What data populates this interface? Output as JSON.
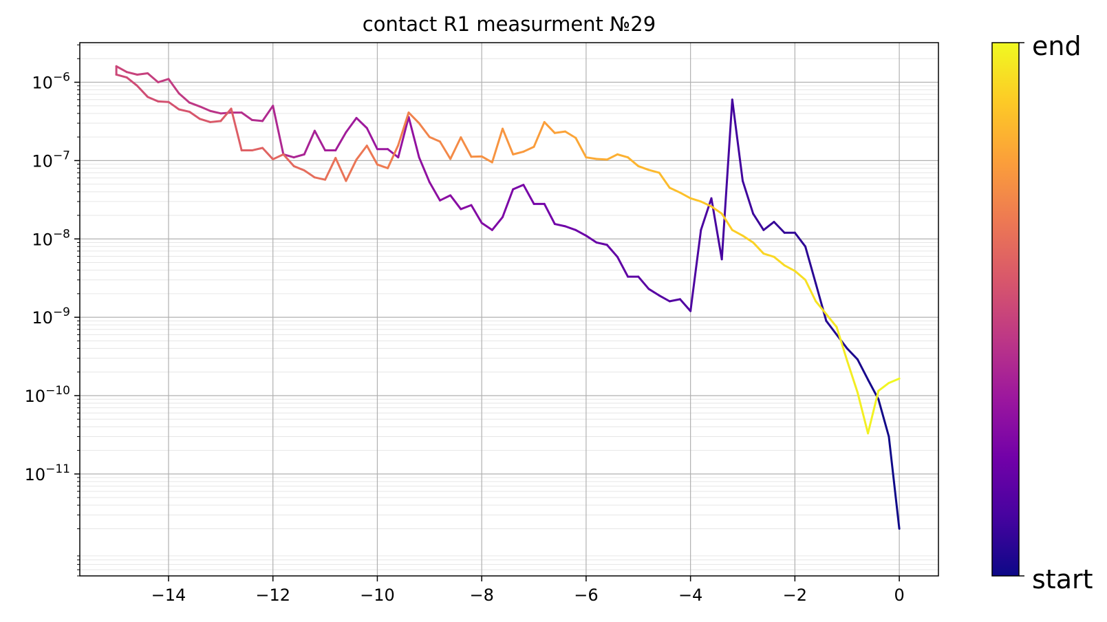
{
  "chart_data": {
    "type": "line",
    "title": "contact R1 measurment №29",
    "xlabel": "",
    "ylabel": "",
    "y_scale": "log",
    "xlim": [
      -15.7,
      0.75
    ],
    "ylim": [
      5e-13,
      3.2e-06
    ],
    "xticks": [
      -14,
      -12,
      -10,
      -8,
      -6,
      -4,
      -2,
      0
    ],
    "xtick_labels": [
      "−14",
      "−12",
      "−10",
      "−8",
      "−6",
      "−4",
      "−2",
      "0"
    ],
    "yticks": [
      {
        "value": 1e-06,
        "base": "10",
        "exp": "−6"
      },
      {
        "value": 1e-07,
        "base": "10",
        "exp": "−7"
      },
      {
        "value": 1e-08,
        "base": "10",
        "exp": "−8"
      },
      {
        "value": 1e-09,
        "base": "10",
        "exp": "−9"
      },
      {
        "value": 1e-10,
        "base": "10",
        "exp": "−10"
      },
      {
        "value": 1e-11,
        "base": "10",
        "exp": "−11"
      }
    ],
    "grid": true,
    "minor_grid": true,
    "colorscale": "plasma",
    "colorbar": {
      "start_label": "start",
      "end_label": "end",
      "colors": [
        "#0d0887",
        "#46039f",
        "#7201a8",
        "#9c179e",
        "#bd3786",
        "#d8576b",
        "#ed7953",
        "#fb9f3a",
        "#fdca26",
        "#f0f921"
      ]
    },
    "points": [
      [
        0.0,
        2e-12
      ],
      [
        -0.2,
        3e-11
      ],
      [
        -0.4,
        9e-11
      ],
      [
        -0.6,
        1.6e-10
      ],
      [
        -0.8,
        2.9e-10
      ],
      [
        -1.0,
        4e-10
      ],
      [
        -1.2,
        6e-10
      ],
      [
        -1.4,
        9e-10
      ],
      [
        -1.6,
        2.7e-09
      ],
      [
        -1.8,
        8e-09
      ],
      [
        -2.0,
        1.2e-08
      ],
      [
        -2.2,
        1.2e-08
      ],
      [
        -2.4,
        1.65e-08
      ],
      [
        -2.6,
        1.3e-08
      ],
      [
        -2.8,
        2.1e-08
      ],
      [
        -3.0,
        5.5e-08
      ],
      [
        -3.2,
        6e-07
      ],
      [
        -3.4,
        5.5e-09
      ],
      [
        -3.6,
        3.3e-08
      ],
      [
        -3.8,
        1.3e-08
      ],
      [
        -4.0,
        1.2e-09
      ],
      [
        -4.2,
        1.7e-09
      ],
      [
        -4.4,
        1.6e-09
      ],
      [
        -4.6,
        1.9e-09
      ],
      [
        -4.8,
        2.3e-09
      ],
      [
        -5.0,
        3.3e-09
      ],
      [
        -5.2,
        3.3e-09
      ],
      [
        -5.4,
        5.9e-09
      ],
      [
        -5.6,
        8.4e-09
      ],
      [
        -5.8,
        9e-09
      ],
      [
        -6.0,
        1.1e-08
      ],
      [
        -6.2,
        1.3e-08
      ],
      [
        -6.4,
        1.45e-08
      ],
      [
        -6.6,
        1.55e-08
      ],
      [
        -6.8,
        2.8e-08
      ],
      [
        -7.0,
        2.8e-08
      ],
      [
        -7.2,
        4.9e-08
      ],
      [
        -7.4,
        4.3e-08
      ],
      [
        -7.6,
        1.9e-08
      ],
      [
        -7.8,
        1.3e-08
      ],
      [
        -8.0,
        1.6e-08
      ],
      [
        -8.2,
        2.7e-08
      ],
      [
        -8.4,
        2.4e-08
      ],
      [
        -8.6,
        3.6e-08
      ],
      [
        -8.8,
        3.1e-08
      ],
      [
        -9.0,
        5.3e-08
      ],
      [
        -9.2,
        1.1e-07
      ],
      [
        -9.4,
        3.6e-07
      ],
      [
        -9.6,
        1.1e-07
      ],
      [
        -9.8,
        1.4e-07
      ],
      [
        -10.0,
        1.4e-07
      ],
      [
        -10.2,
        2.6e-07
      ],
      [
        -10.4,
        3.5e-07
      ],
      [
        -10.6,
        2.3e-07
      ],
      [
        -10.8,
        1.35e-07
      ],
      [
        -11.0,
        1.35e-07
      ],
      [
        -11.2,
        2.4e-07
      ],
      [
        -11.4,
        1.2e-07
      ],
      [
        -11.6,
        1.1e-07
      ],
      [
        -11.8,
        1.2e-07
      ],
      [
        -12.0,
        5e-07
      ],
      [
        -12.2,
        3.2e-07
      ],
      [
        -12.4,
        3.3e-07
      ],
      [
        -12.6,
        4.1e-07
      ],
      [
        -12.8,
        4.1e-07
      ],
      [
        -13.0,
        4e-07
      ],
      [
        -13.2,
        4.3e-07
      ],
      [
        -13.4,
        4.9e-07
      ],
      [
        -13.6,
        5.5e-07
      ],
      [
        -13.8,
        7.2e-07
      ],
      [
        -14.0,
        1.1e-06
      ],
      [
        -14.2,
        1e-06
      ],
      [
        -14.4,
        1.3e-06
      ],
      [
        -14.6,
        1.25e-06
      ],
      [
        -14.8,
        1.35e-06
      ],
      [
        -15.0,
        1.6e-06
      ],
      [
        -15.0,
        1.25e-06
      ],
      [
        -14.8,
        1.15e-06
      ],
      [
        -14.6,
        9e-07
      ],
      [
        -14.4,
        6.5e-07
      ],
      [
        -14.2,
        5.7e-07
      ],
      [
        -14.0,
        5.6e-07
      ],
      [
        -13.8,
        4.5e-07
      ],
      [
        -13.6,
        4.2e-07
      ],
      [
        -13.4,
        3.4e-07
      ],
      [
        -13.2,
        3.1e-07
      ],
      [
        -13.0,
        3.2e-07
      ],
      [
        -12.8,
        4.6e-07
      ],
      [
        -12.6,
        1.35e-07
      ],
      [
        -12.4,
        1.35e-07
      ],
      [
        -12.2,
        1.45e-07
      ],
      [
        -12.0,
        1.04e-07
      ],
      [
        -11.8,
        1.2e-07
      ],
      [
        -11.6,
        8.5e-08
      ],
      [
        -11.4,
        7.5e-08
      ],
      [
        -11.2,
        6.1e-08
      ],
      [
        -11.0,
        5.7e-08
      ],
      [
        -10.8,
        1.08e-07
      ],
      [
        -10.6,
        5.5e-08
      ],
      [
        -10.4,
        1.03e-07
      ],
      [
        -10.2,
        1.55e-07
      ],
      [
        -10.0,
        8.9e-08
      ],
      [
        -9.8,
        8e-08
      ],
      [
        -9.6,
        1.57e-07
      ],
      [
        -9.4,
        4.1e-07
      ],
      [
        -9.2,
        3e-07
      ],
      [
        -9.0,
        2e-07
      ],
      [
        -8.8,
        1.75e-07
      ],
      [
        -8.6,
        1.05e-07
      ],
      [
        -8.4,
        1.98e-07
      ],
      [
        -8.2,
        1.12e-07
      ],
      [
        -8.0,
        1.13e-07
      ],
      [
        -7.8,
        9.5e-08
      ],
      [
        -7.6,
        2.55e-07
      ],
      [
        -7.4,
        1.2e-07
      ],
      [
        -7.2,
        1.3e-07
      ],
      [
        -7.0,
        1.5e-07
      ],
      [
        -6.8,
        3.1e-07
      ],
      [
        -6.6,
        2.25e-07
      ],
      [
        -6.4,
        2.35e-07
      ],
      [
        -6.2,
        1.95e-07
      ],
      [
        -6.0,
        1.1e-07
      ],
      [
        -5.8,
        1.05e-07
      ],
      [
        -5.6,
        1.03e-07
      ],
      [
        -5.4,
        1.2e-07
      ],
      [
        -5.2,
        1.1e-07
      ],
      [
        -5.0,
        8.5e-08
      ],
      [
        -4.8,
        7.6e-08
      ],
      [
        -4.6,
        7e-08
      ],
      [
        -4.4,
        4.5e-08
      ],
      [
        -4.2,
        3.9e-08
      ],
      [
        -4.0,
        3.3e-08
      ],
      [
        -3.8,
        3e-08
      ],
      [
        -3.6,
        2.6e-08
      ],
      [
        -3.4,
        2.1e-08
      ],
      [
        -3.2,
        1.3e-08
      ],
      [
        -3.0,
        1.1e-08
      ],
      [
        -2.8,
        9e-09
      ],
      [
        -2.6,
        6.5e-09
      ],
      [
        -2.4,
        5.9e-09
      ],
      [
        -2.2,
        4.6e-09
      ],
      [
        -2.0,
        3.9e-09
      ],
      [
        -1.8,
        3e-09
      ],
      [
        -1.6,
        1.6e-09
      ],
      [
        -1.4,
        1.1e-09
      ],
      [
        -1.2,
        7.5e-10
      ],
      [
        -1.0,
        2.8e-10
      ],
      [
        -0.8,
        1.1e-10
      ],
      [
        -0.6,
        3.3e-11
      ],
      [
        -0.4,
        1.15e-10
      ],
      [
        -0.2,
        1.45e-10
      ],
      [
        0.0,
        1.65e-10
      ]
    ]
  }
}
